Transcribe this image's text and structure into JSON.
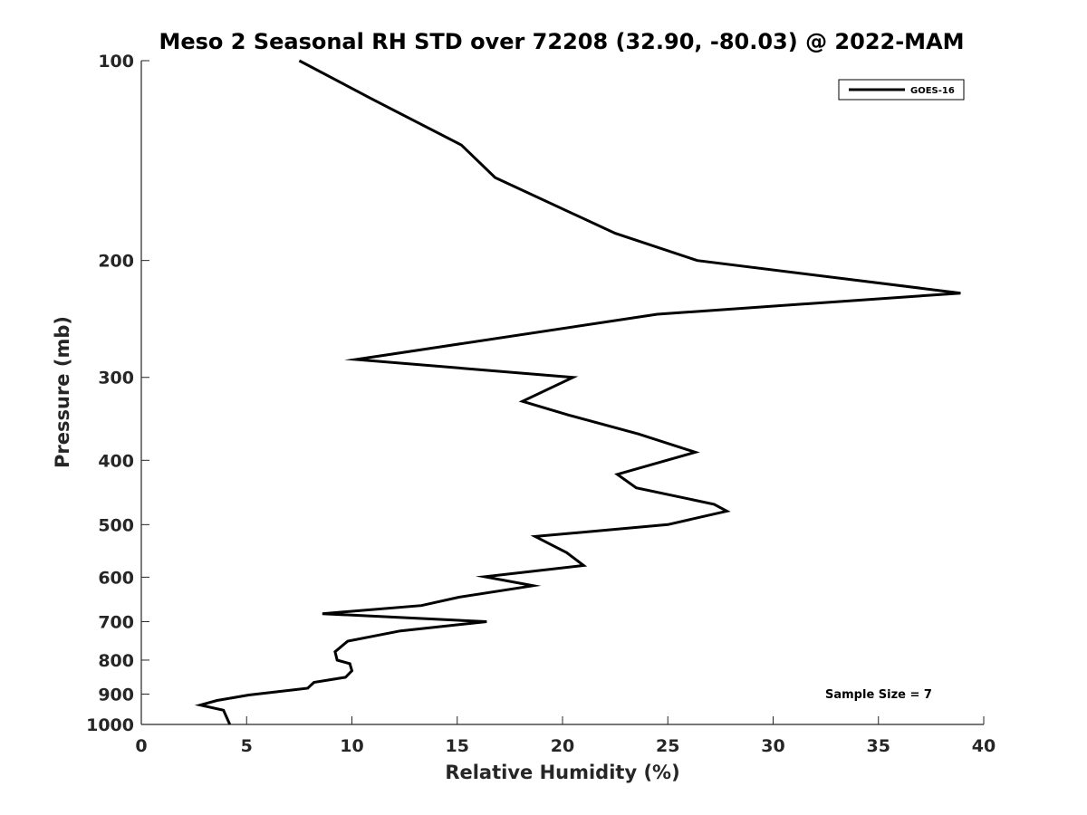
{
  "chart_data": {
    "type": "line",
    "title": "Meso 2 Seasonal RH STD over 72208 (32.90, -80.03) @ 2022-MAM",
    "xlabel": "Relative Humidity (%)",
    "ylabel": "Pressure (mb)",
    "xlim": [
      0,
      40
    ],
    "ylim": [
      100,
      1000
    ],
    "y_scale": "log",
    "y_reversed": true,
    "x_ticks": [
      0,
      5,
      10,
      15,
      20,
      25,
      30,
      35,
      40
    ],
    "y_ticks": [
      100,
      200,
      300,
      400,
      500,
      600,
      700,
      800,
      900,
      1000
    ],
    "grid": false,
    "legend_position": "top-right",
    "series": [
      {
        "name": "GOES-16",
        "color": "#000000",
        "x": [
          7.5,
          10.9,
          15.2,
          16.8,
          22.5,
          26.4,
          38.9,
          24.5,
          10.2,
          20.5,
          18.1,
          20.3,
          23.6,
          26.3,
          22.6,
          23.5,
          27.2,
          27.8,
          25.0,
          18.7,
          20.2,
          21.0,
          16.3,
          18.6,
          15.1,
          13.3,
          8.6,
          16.4,
          12.3,
          9.8,
          9.2,
          9.3,
          9.9,
          10.0,
          9.7,
          8.2,
          7.9,
          5.1,
          3.6,
          2.8,
          3.9,
          4.2
        ],
        "y": [
          100,
          114,
          134,
          150,
          182,
          200,
          224,
          241,
          282,
          300,
          326,
          342,
          365,
          389,
          420,
          440,
          466,
          477,
          500,
          521,
          551,
          576,
          599,
          618,
          643,
          662,
          681,
          700,
          723,
          749,
          777,
          800,
          810,
          830,
          849,
          864,
          882,
          903,
          920,
          935,
          952,
          1000
        ]
      }
    ],
    "annotations": [
      "Sample Size = 7"
    ]
  }
}
